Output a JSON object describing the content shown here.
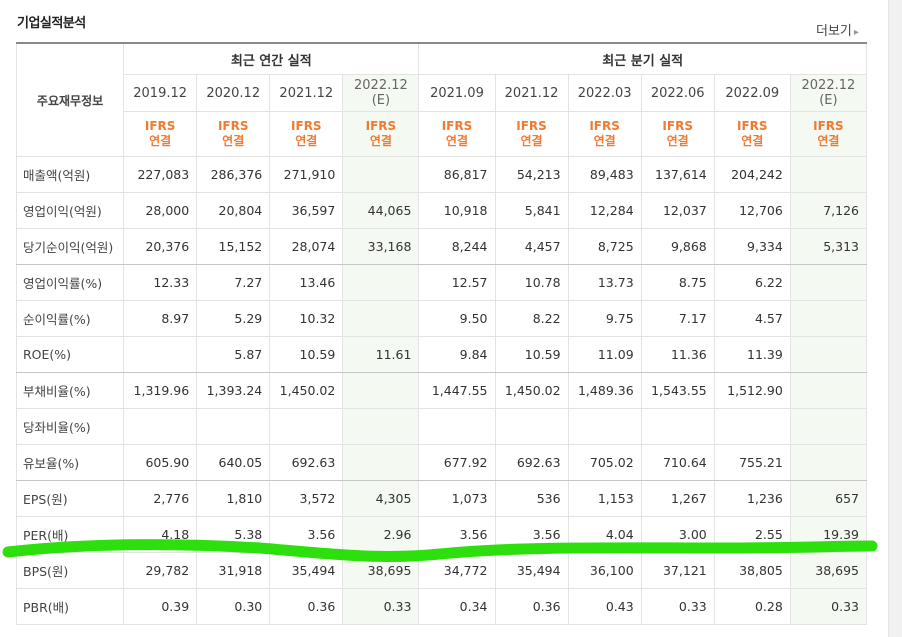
{
  "section_title": "기업실적분석",
  "more_link": "더보기",
  "more_arrow": "▸",
  "table": {
    "row_header_title": "주요재무정보",
    "groups": [
      {
        "label": "최근 연간 실적"
      },
      {
        "label": "최근 분기 실적"
      }
    ],
    "columns": [
      {
        "period": "2019.12",
        "estimate": "",
        "ifrs": "IFRS",
        "basis": "연결",
        "est": false
      },
      {
        "period": "2020.12",
        "estimate": "",
        "ifrs": "IFRS",
        "basis": "연결",
        "est": false
      },
      {
        "period": "2021.12",
        "estimate": "",
        "ifrs": "IFRS",
        "basis": "연결",
        "est": false
      },
      {
        "period": "2022.12",
        "estimate": "(E)",
        "ifrs": "IFRS",
        "basis": "연결",
        "est": true
      },
      {
        "period": "2021.09",
        "estimate": "",
        "ifrs": "IFRS",
        "basis": "연결",
        "est": false
      },
      {
        "period": "2021.12",
        "estimate": "",
        "ifrs": "IFRS",
        "basis": "연결",
        "est": false
      },
      {
        "period": "2022.03",
        "estimate": "",
        "ifrs": "IFRS",
        "basis": "연결",
        "est": false
      },
      {
        "period": "2022.06",
        "estimate": "",
        "ifrs": "IFRS",
        "basis": "연결",
        "est": false
      },
      {
        "period": "2022.09",
        "estimate": "",
        "ifrs": "IFRS",
        "basis": "연결",
        "est": false
      },
      {
        "period": "2022.12",
        "estimate": "(E)",
        "ifrs": "IFRS",
        "basis": "연결",
        "est": true
      }
    ],
    "rows": [
      {
        "label": "매출액(억원)",
        "values": [
          "227,083",
          "286,376",
          "271,910",
          "",
          "86,817",
          "54,213",
          "89,483",
          "137,614",
          "204,242",
          ""
        ]
      },
      {
        "label": "영업이익(억원)",
        "values": [
          "28,000",
          "20,804",
          "36,597",
          "44,065",
          "10,918",
          "5,841",
          "12,284",
          "12,037",
          "12,706",
          "7,126"
        ]
      },
      {
        "label": "당기순이익(억원)",
        "values": [
          "20,376",
          "15,152",
          "28,074",
          "33,168",
          "8,244",
          "4,457",
          "8,725",
          "9,868",
          "9,334",
          "5,313"
        ]
      },
      {
        "label": "영업이익률(%)",
        "values": [
          "12.33",
          "7.27",
          "13.46",
          "",
          "12.57",
          "10.78",
          "13.73",
          "8.75",
          "6.22",
          ""
        ]
      },
      {
        "label": "순이익률(%)",
        "values": [
          "8.97",
          "5.29",
          "10.32",
          "",
          "9.50",
          "8.22",
          "9.75",
          "7.17",
          "4.57",
          ""
        ]
      },
      {
        "label": "ROE(%)",
        "values": [
          "",
          "5.87",
          "10.59",
          "11.61",
          "9.84",
          "10.59",
          "11.09",
          "11.36",
          "11.39",
          ""
        ]
      },
      {
        "label": "부채비율(%)",
        "values": [
          "1,319.96",
          "1,393.24",
          "1,450.02",
          "",
          "1,447.55",
          "1,450.02",
          "1,489.36",
          "1,543.55",
          "1,512.90",
          ""
        ]
      },
      {
        "label": "당좌비율(%)",
        "values": [
          "",
          "",
          "",
          "",
          "",
          "",
          "",
          "",
          "",
          ""
        ]
      },
      {
        "label": "유보율(%)",
        "values": [
          "605.90",
          "640.05",
          "692.63",
          "",
          "677.92",
          "692.63",
          "705.02",
          "710.64",
          "755.21",
          ""
        ]
      },
      {
        "label": "EPS(원)",
        "values": [
          "2,776",
          "1,810",
          "3,572",
          "4,305",
          "1,073",
          "536",
          "1,153",
          "1,267",
          "1,236",
          "657"
        ]
      },
      {
        "label": "PER(배)",
        "values": [
          "4.18",
          "5.38",
          "3.56",
          "2.96",
          "3.56",
          "3.56",
          "4.04",
          "3.00",
          "2.55",
          "19.39"
        ]
      },
      {
        "label": "BPS(원)",
        "values": [
          "29,782",
          "31,918",
          "35,494",
          "38,695",
          "34,772",
          "35,494",
          "36,100",
          "37,121",
          "38,805",
          "38,695"
        ]
      },
      {
        "label": "PBR(배)",
        "values": [
          "0.39",
          "0.30",
          "0.36",
          "0.33",
          "0.34",
          "0.36",
          "0.43",
          "0.33",
          "0.28",
          "0.33"
        ]
      }
    ]
  },
  "annotation": {
    "color": "#22dd00"
  },
  "colors": {
    "ifrs": "#f07a32",
    "estimate_bg": "#f4f9f2"
  }
}
